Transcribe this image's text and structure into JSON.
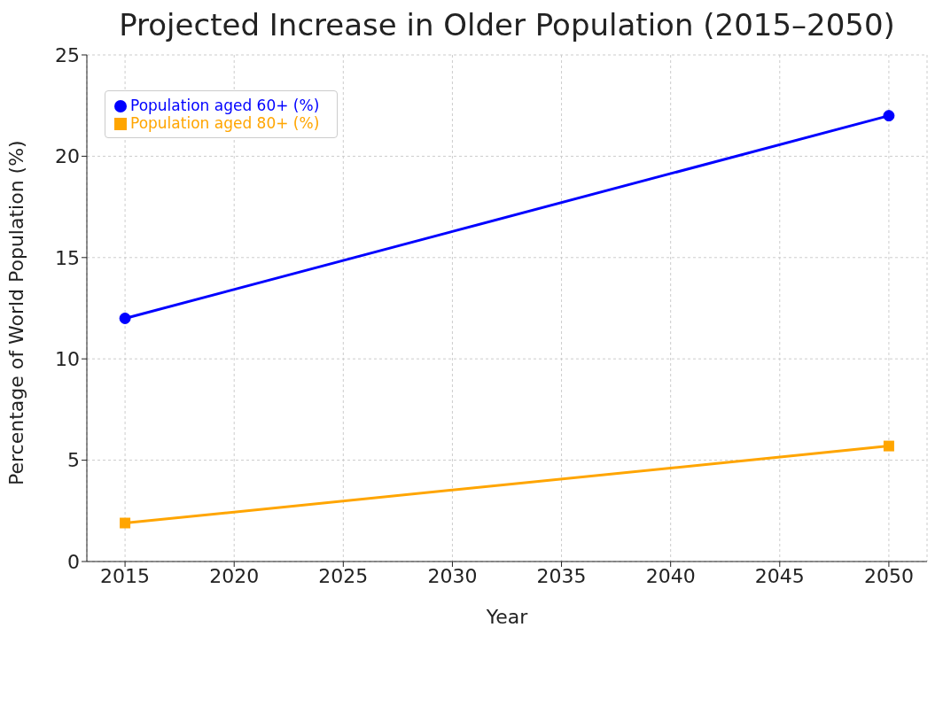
{
  "chart_data": {
    "type": "line",
    "title": "Projected Increase in Older Population (2015–2050)",
    "xlabel": "Year",
    "ylabel": "Percentage of World Population (%)",
    "x": [
      2015,
      2050
    ],
    "series": [
      {
        "name": "Population aged 60+ (%)",
        "color": "#0000ff",
        "values": [
          12,
          22
        ],
        "marker": "circle"
      },
      {
        "name": "Population aged 80+ (%)",
        "color": "#ffa500",
        "values": [
          1.9,
          5.7
        ],
        "marker": "square"
      }
    ],
    "xlim": [
      2013.25,
      2051.75
    ],
    "xticks": [
      2015,
      2020,
      2025,
      2030,
      2035,
      2040,
      2045,
      2050
    ],
    "ylim": [
      0,
      25
    ],
    "yticks": [
      0,
      5,
      10,
      15,
      20,
      25
    ],
    "grid": true,
    "legend": "top left",
    "line_style": "solid"
  }
}
